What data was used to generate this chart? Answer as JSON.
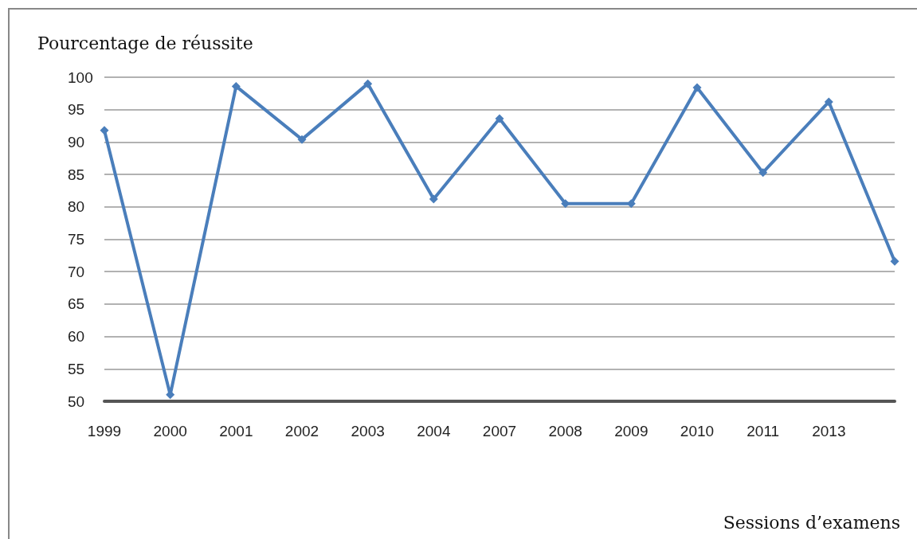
{
  "chart_data": {
    "type": "line",
    "ylabel": "Pourcentage de réussite",
    "xlabel": "Sessions d’examens",
    "categories": [
      "1999",
      "2000",
      "2001",
      "2002",
      "2003",
      "2004",
      "2007",
      "2008",
      "2009",
      "2010",
      "2011",
      "2013",
      null
    ],
    "series": [
      {
        "color": "#4a7ebb",
        "values": [
          91.8,
          51,
          98.6,
          90.4,
          99,
          81.2,
          93.6,
          80.5,
          80.5,
          98.4,
          85.3,
          96.2,
          71.6
        ]
      }
    ],
    "ylim": [
      50,
      100
    ],
    "yticks": [
      50,
      55,
      60,
      65,
      70,
      75,
      80,
      85,
      90,
      95,
      100
    ],
    "grid": "y",
    "marker": "diamond",
    "line_style": "solid"
  }
}
